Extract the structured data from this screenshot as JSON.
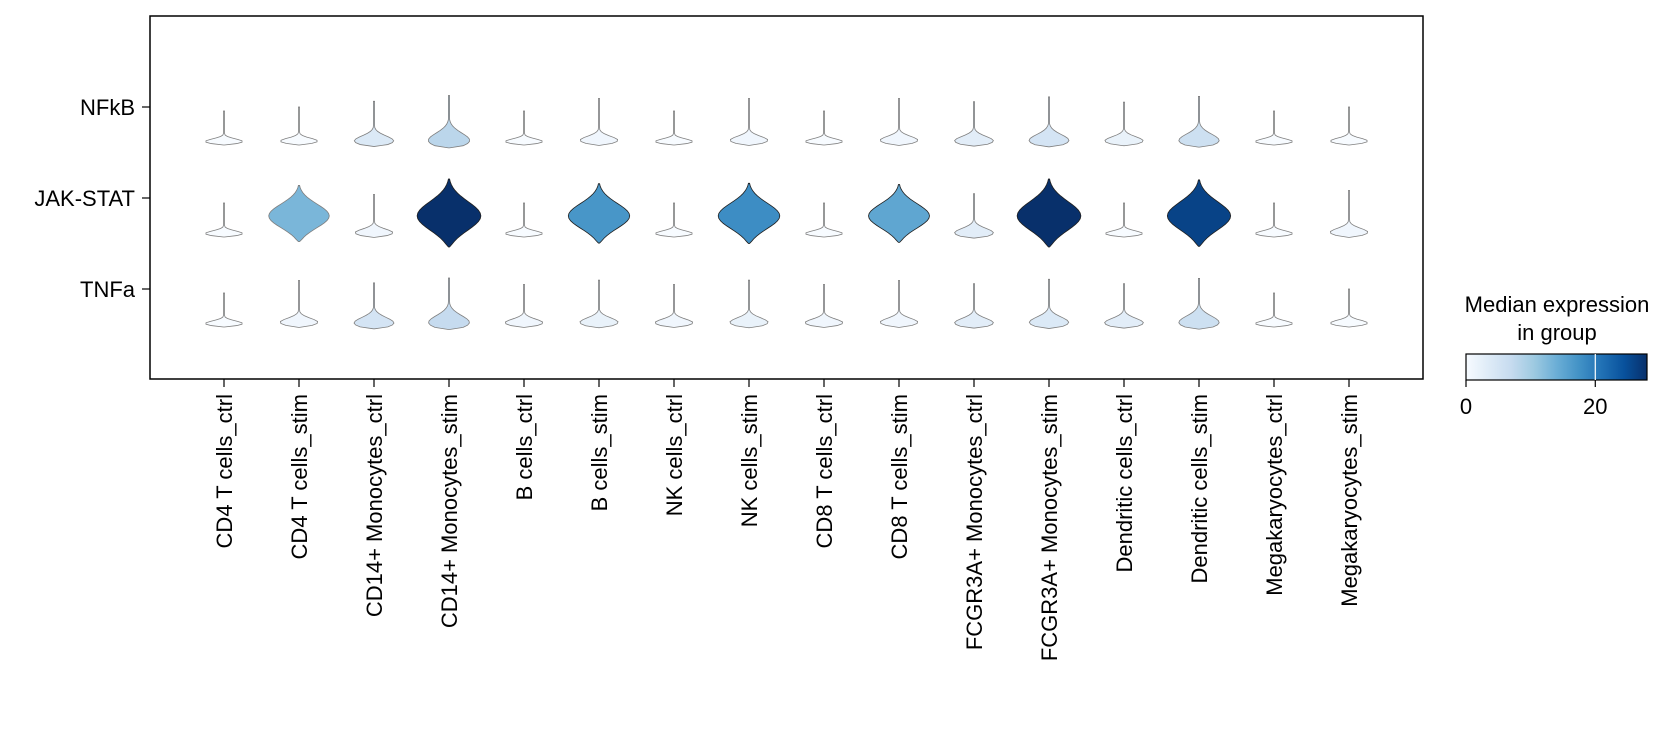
{
  "chart_data": {
    "type": "violin",
    "rows": [
      "NFkB",
      "JAK-STAT",
      "TNFa"
    ],
    "categories": [
      "CD4 T cells_ctrl",
      "CD4 T cells_stim",
      "CD14+ Monocytes_ctrl",
      "CD14+ Monocytes_stim",
      "B cells_ctrl",
      "B cells_stim",
      "NK cells_ctrl",
      "NK cells_stim",
      "CD8 T cells_ctrl",
      "CD8 T cells_stim",
      "FCGR3A+ Monocytes_ctrl",
      "FCGR3A+ Monocytes_stim",
      "Dendritic cells_ctrl",
      "Dendritic cells_stim",
      "Megakaryocytes_ctrl",
      "Megakaryocytes_stim"
    ],
    "median_expression": [
      [
        0,
        0,
        4,
        8,
        0,
        1,
        0,
        1,
        0,
        1,
        3,
        5,
        2,
        6,
        0,
        0
      ],
      [
        0,
        13,
        1,
        28,
        0,
        17,
        0,
        18,
        0,
        15,
        3,
        28,
        0,
        26,
        0,
        1
      ],
      [
        0,
        1,
        5,
        7,
        1,
        2,
        1,
        2,
        1,
        1,
        3,
        4,
        3,
        6,
        0,
        0
      ]
    ],
    "colorbar": {
      "title_line1": "Median expression",
      "title_line2": "in group",
      "ticks": [
        "0",
        "20"
      ],
      "min": 0,
      "max": 28,
      "marker": 20
    },
    "colormap": "Blues",
    "colors": {
      "low": "#f7fbff",
      "high": "#08306b",
      "outline": "#7f7f7f",
      "frame": "#000000"
    },
    "grid": false
  }
}
